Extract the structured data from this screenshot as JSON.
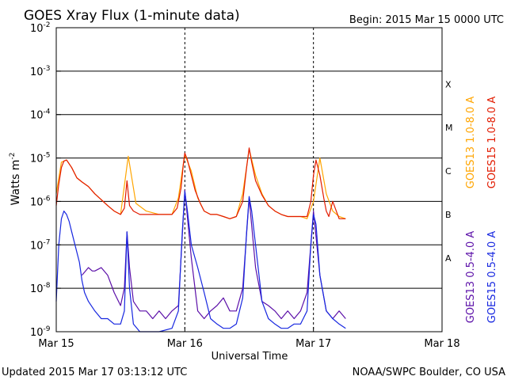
{
  "chart_data": {
    "type": "line",
    "title": "GOES Xray Flux (1-minute data)",
    "begin_label": "Begin:  2015 Mar 15 0000 UTC",
    "xlabel": "Universal Time",
    "ylabel_main": "Watts m",
    "ylabel_exp": "-2",
    "footer_left": "Updated 2015 Mar 17 03:13:12 UTC",
    "footer_right": "NOAA/SWPC Boulder, CO USA",
    "x_unit": "days since 2015-03-15 00:00 UTC",
    "xlim": [
      0,
      3
    ],
    "x_ticks": [
      {
        "x": 0,
        "label": "Mar 15"
      },
      {
        "x": 1,
        "label": "Mar 16"
      },
      {
        "x": 2,
        "label": "Mar 17"
      },
      {
        "x": 3,
        "label": "Mar 18"
      }
    ],
    "y_scale": "log",
    "ylim": [
      1e-09,
      0.01
    ],
    "y_ticks": [
      {
        "exp": -9,
        "label": "-9"
      },
      {
        "exp": -8,
        "label": "-8"
      },
      {
        "exp": -7,
        "label": "-7"
      },
      {
        "exp": -6,
        "label": "-6"
      },
      {
        "exp": -5,
        "label": "-5"
      },
      {
        "exp": -4,
        "label": "-4"
      },
      {
        "exp": -3,
        "label": "-3"
      },
      {
        "exp": -2,
        "label": "-2"
      }
    ],
    "flare_classes": [
      {
        "label": "A",
        "y": 5e-08
      },
      {
        "label": "B",
        "y": 5e-07
      },
      {
        "label": "C",
        "y": 5e-06
      },
      {
        "label": "M",
        "y": 5e-05
      },
      {
        "label": "X",
        "y": 0.0005
      }
    ],
    "series": [
      {
        "name": "GOES13 1.0-8.0 A",
        "color": "#ffa500",
        "x": [
          0.0,
          0.04,
          0.08,
          0.12,
          0.16,
          0.2,
          0.25,
          0.3,
          0.35,
          0.4,
          0.45,
          0.5,
          0.56,
          0.62,
          0.7,
          0.8,
          0.9,
          0.95,
          0.98,
          1.0,
          1.05,
          1.1,
          1.15,
          1.2,
          1.25,
          1.3,
          1.35,
          1.4,
          1.45,
          1.5,
          1.55,
          1.6,
          1.65,
          1.7,
          1.75,
          1.8,
          1.85,
          1.9,
          1.95,
          2.0,
          2.05,
          2.1,
          2.15,
          2.2,
          2.25
        ],
        "y": [
          1.5e-06,
          8e-06,
          9e-06,
          6e-06,
          3.5e-06,
          2.8e-06,
          2.2e-06,
          1.5e-06,
          1.1e-06,
          8e-07,
          6e-07,
          5e-07,
          1.1e-05,
          9e-07,
          6e-07,
          5e-07,
          5e-07,
          1.2e-06,
          5e-06,
          1.2e-05,
          5e-06,
          1.2e-06,
          6e-07,
          5e-07,
          5e-07,
          4.5e-07,
          4e-07,
          4.5e-07,
          1.5e-06,
          1.6e-05,
          4e-06,
          1.5e-06,
          8e-07,
          6e-07,
          5e-07,
          4.5e-07,
          4.5e-07,
          4.5e-07,
          4e-07,
          1e-06,
          1e-05,
          1.5e-06,
          6e-07,
          4.5e-07,
          4e-07
        ]
      },
      {
        "name": "GOES15 1.0-8.0 A",
        "color": "#e21b00",
        "x": [
          0.0,
          0.02,
          0.04,
          0.06,
          0.08,
          0.12,
          0.16,
          0.2,
          0.25,
          0.3,
          0.35,
          0.4,
          0.45,
          0.5,
          0.53,
          0.55,
          0.57,
          0.6,
          0.65,
          0.7,
          0.8,
          0.9,
          0.94,
          0.97,
          0.99,
          1.0,
          1.02,
          1.05,
          1.08,
          1.12,
          1.15,
          1.2,
          1.25,
          1.3,
          1.35,
          1.4,
          1.45,
          1.48,
          1.5,
          1.52,
          1.55,
          1.6,
          1.65,
          1.7,
          1.75,
          1.8,
          1.85,
          1.9,
          1.95,
          1.98,
          2.0,
          2.02,
          2.05,
          2.08,
          2.1,
          2.12,
          2.15,
          2.2,
          2.25
        ],
        "y": [
          8e-07,
          2.5e-06,
          6e-06,
          8.5e-06,
          9e-06,
          6e-06,
          3.5e-06,
          2.8e-06,
          2.2e-06,
          1.5e-06,
          1.1e-06,
          8e-07,
          6e-07,
          5e-07,
          7e-07,
          3e-06,
          8e-07,
          6e-07,
          5e-07,
          5e-07,
          5e-07,
          5e-07,
          7e-07,
          2e-06,
          8e-06,
          1.3e-05,
          9e-06,
          4e-06,
          1.8e-06,
          9e-07,
          6e-07,
          5e-07,
          5e-07,
          4.5e-07,
          4e-07,
          4.5e-07,
          1e-06,
          6e-06,
          1.7e-05,
          8e-06,
          3e-06,
          1.4e-06,
          8e-07,
          6e-07,
          5e-07,
          4.5e-07,
          4.5e-07,
          4.5e-07,
          4.5e-07,
          1e-06,
          4e-06,
          9e-06,
          4e-06,
          1.2e-06,
          6e-07,
          4.5e-07,
          1e-06,
          4e-07,
          4e-07
        ]
      },
      {
        "name": "GOES13 0.5-4.0 A",
        "color": "#5b0fa8",
        "x": [
          0.2,
          0.25,
          0.28,
          0.3,
          0.35,
          0.4,
          0.45,
          0.5,
          0.53,
          0.55,
          0.57,
          0.6,
          0.65,
          0.7,
          0.75,
          0.8,
          0.85,
          0.9,
          0.95,
          1.0,
          1.05,
          1.1,
          1.15,
          1.2,
          1.25,
          1.3,
          1.35,
          1.4,
          1.45,
          1.5,
          1.55,
          1.6,
          1.65,
          1.7,
          1.75,
          1.8,
          1.85,
          1.9,
          1.95,
          2.0,
          2.05,
          2.1,
          2.15,
          2.2,
          2.25
        ],
        "y": [
          2e-08,
          3e-08,
          2.5e-08,
          2.5e-08,
          3e-08,
          2e-08,
          8e-09,
          4e-09,
          1e-08,
          2e-07,
          3e-08,
          5e-09,
          3e-09,
          3e-09,
          2e-09,
          3e-09,
          2e-09,
          3e-09,
          4e-09,
          1.8e-06,
          5e-08,
          3e-09,
          2e-09,
          3e-09,
          4e-09,
          6e-09,
          3e-09,
          3e-09,
          1e-08,
          1.2e-06,
          3e-08,
          5e-09,
          4e-09,
          3e-09,
          2e-09,
          3e-09,
          2e-09,
          3e-09,
          8e-09,
          6e-07,
          2e-08,
          3e-09,
          2e-09,
          3e-09,
          2e-09
        ]
      },
      {
        "name": "GOES15 0.5-4.0 A",
        "color": "#1727e0",
        "x": [
          0.0,
          0.02,
          0.04,
          0.06,
          0.08,
          0.1,
          0.12,
          0.15,
          0.18,
          0.2,
          0.22,
          0.25,
          0.3,
          0.35,
          0.4,
          0.45,
          0.5,
          0.53,
          0.55,
          0.57,
          0.6,
          0.65,
          0.7,
          0.8,
          0.9,
          0.95,
          0.98,
          1.0,
          1.02,
          1.05,
          1.1,
          1.15,
          1.2,
          1.25,
          1.3,
          1.35,
          1.4,
          1.45,
          1.48,
          1.5,
          1.52,
          1.55,
          1.6,
          1.65,
          1.7,
          1.75,
          1.8,
          1.85,
          1.9,
          1.95,
          1.98,
          2.0,
          2.02,
          2.05,
          2.1,
          2.15,
          2.2,
          2.25
        ],
        "y": [
          5e-09,
          1e-07,
          4e-07,
          6e-07,
          5e-07,
          3.5e-07,
          2e-07,
          9e-08,
          4e-08,
          1.5e-08,
          8e-09,
          5e-09,
          3e-09,
          2e-09,
          2e-09,
          1.5e-09,
          1.5e-09,
          3e-09,
          2e-07,
          1e-08,
          1.5e-09,
          1e-09,
          1e-09,
          1e-09,
          1.2e-09,
          3e-09,
          2e-07,
          1.7e-06,
          6e-07,
          1e-07,
          3e-08,
          8e-09,
          2e-09,
          1.5e-09,
          1.2e-09,
          1.2e-09,
          1.5e-09,
          6e-09,
          2e-07,
          1.3e-06,
          6e-07,
          1e-07,
          5e-09,
          2e-09,
          1.5e-09,
          1.2e-09,
          1.2e-09,
          1.5e-09,
          1.5e-09,
          3e-09,
          1e-07,
          5e-07,
          3e-07,
          2e-08,
          3e-09,
          2e-09,
          1.5e-09,
          1.2e-09
        ]
      }
    ],
    "grid": true,
    "legend": "right, vertical"
  }
}
